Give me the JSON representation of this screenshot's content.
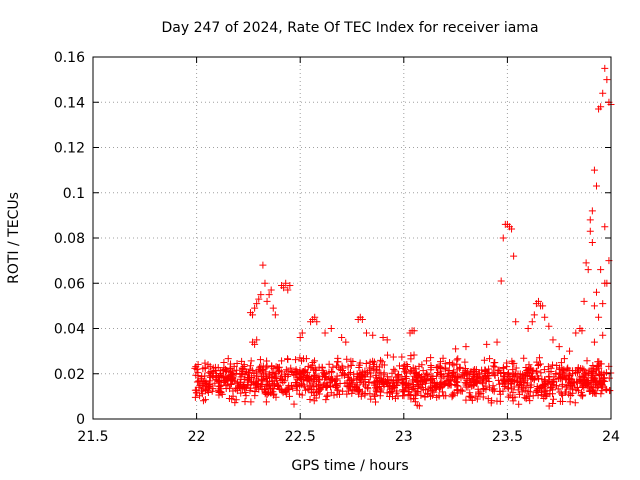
{
  "chart_data": {
    "type": "scatter",
    "title": "Day 247 of 2024, Rate Of TEC Index for receiver iama",
    "xlabel": "GPS time / hours",
    "ylabel": "ROTI / TECUs",
    "xlim": [
      21.5,
      24
    ],
    "ylim": [
      0,
      0.16
    ],
    "xticks": [
      21.5,
      22,
      22.5,
      23,
      23.5,
      24
    ],
    "xtick_labels": [
      "21.5",
      "22",
      "22.5",
      "23",
      "23.5",
      "24"
    ],
    "yticks": [
      0,
      0.02,
      0.04,
      0.06,
      0.08,
      0.1,
      0.12,
      0.14,
      0.16
    ],
    "ytick_labels": [
      "0",
      "0.02",
      "0.04",
      "0.06",
      "0.08",
      "0.1",
      "0.12",
      "0.14",
      "0.16"
    ],
    "grid": true,
    "marker": "+",
    "color": "#ff0000",
    "series": [
      {
        "name": "iama",
        "background_band": {
          "x_range": [
            21.99,
            24.0
          ],
          "y_min": 0.004,
          "y_max": 0.03,
          "note": "dense cluster of points, approximated"
        },
        "points": [
          [
            22.26,
            0.047
          ],
          [
            22.27,
            0.046
          ],
          [
            22.28,
            0.049
          ],
          [
            22.29,
            0.051
          ],
          [
            22.3,
            0.053
          ],
          [
            22.31,
            0.055
          ],
          [
            22.32,
            0.068
          ],
          [
            22.33,
            0.06
          ],
          [
            22.34,
            0.052
          ],
          [
            22.35,
            0.055
          ],
          [
            22.36,
            0.057
          ],
          [
            22.37,
            0.049
          ],
          [
            22.38,
            0.046
          ],
          [
            22.27,
            0.034
          ],
          [
            22.28,
            0.033
          ],
          [
            22.29,
            0.035
          ],
          [
            22.41,
            0.059
          ],
          [
            22.42,
            0.058
          ],
          [
            22.43,
            0.06
          ],
          [
            22.44,
            0.057
          ],
          [
            22.45,
            0.059
          ],
          [
            22.5,
            0.036
          ],
          [
            22.51,
            0.038
          ],
          [
            22.55,
            0.043
          ],
          [
            22.56,
            0.044
          ],
          [
            22.57,
            0.045
          ],
          [
            22.58,
            0.043
          ],
          [
            22.62,
            0.038
          ],
          [
            22.65,
            0.04
          ],
          [
            22.7,
            0.036
          ],
          [
            22.72,
            0.034
          ],
          [
            22.78,
            0.044
          ],
          [
            22.79,
            0.045
          ],
          [
            22.8,
            0.044
          ],
          [
            22.82,
            0.038
          ],
          [
            22.85,
            0.037
          ],
          [
            22.9,
            0.036
          ],
          [
            22.92,
            0.035
          ],
          [
            23.03,
            0.038
          ],
          [
            23.04,
            0.039
          ],
          [
            23.05,
            0.039
          ],
          [
            23.25,
            0.031
          ],
          [
            23.3,
            0.032
          ],
          [
            23.4,
            0.033
          ],
          [
            23.45,
            0.034
          ],
          [
            23.47,
            0.061
          ],
          [
            23.48,
            0.08
          ],
          [
            23.49,
            0.086
          ],
          [
            23.5,
            0.086
          ],
          [
            23.51,
            0.085
          ],
          [
            23.52,
            0.084
          ],
          [
            23.53,
            0.072
          ],
          [
            23.54,
            0.043
          ],
          [
            23.6,
            0.04
          ],
          [
            23.62,
            0.043
          ],
          [
            23.63,
            0.046
          ],
          [
            23.64,
            0.051
          ],
          [
            23.65,
            0.052
          ],
          [
            23.66,
            0.05
          ],
          [
            23.67,
            0.05
          ],
          [
            23.68,
            0.045
          ],
          [
            23.7,
            0.041
          ],
          [
            23.72,
            0.035
          ],
          [
            23.75,
            0.032
          ],
          [
            23.8,
            0.03
          ],
          [
            23.86,
            0.039
          ],
          [
            23.87,
            0.052
          ],
          [
            23.88,
            0.069
          ],
          [
            23.89,
            0.066
          ],
          [
            23.9,
            0.083
          ],
          [
            23.9,
            0.088
          ],
          [
            23.91,
            0.092
          ],
          [
            23.91,
            0.078
          ],
          [
            23.92,
            0.11
          ],
          [
            23.92,
            0.05
          ],
          [
            23.93,
            0.103
          ],
          [
            23.93,
            0.056
          ],
          [
            23.94,
            0.137
          ],
          [
            23.94,
            0.045
          ],
          [
            23.95,
            0.138
          ],
          [
            23.95,
            0.066
          ],
          [
            23.96,
            0.144
          ],
          [
            23.96,
            0.051
          ],
          [
            23.97,
            0.155
          ],
          [
            23.97,
            0.06
          ],
          [
            23.97,
            0.085
          ],
          [
            23.98,
            0.15
          ],
          [
            23.98,
            0.06
          ],
          [
            23.99,
            0.14
          ],
          [
            23.99,
            0.07
          ],
          [
            24.0,
            0.139
          ],
          [
            23.96,
            0.037
          ],
          [
            23.92,
            0.034
          ],
          [
            23.85,
            0.04
          ],
          [
            23.83,
            0.038
          ]
        ]
      }
    ]
  }
}
